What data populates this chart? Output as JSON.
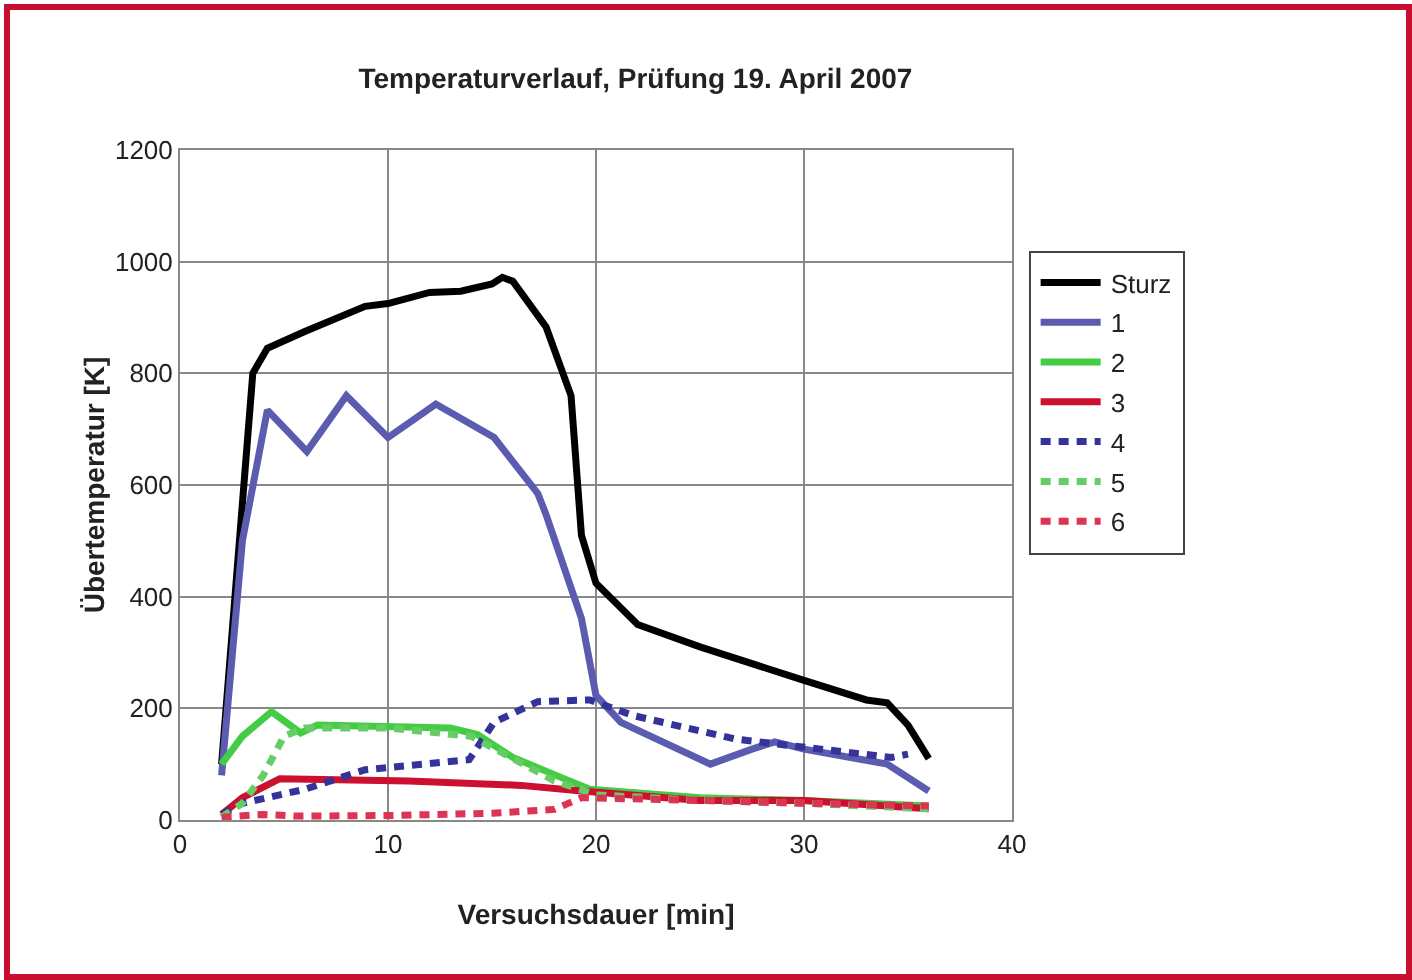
{
  "chart_data": {
    "type": "line",
    "title": "Temperaturverlauf, Prüfung 19. April 2007",
    "xlabel": "Versuchsdauer [min]",
    "ylabel": "Übertemperatur [K]",
    "xlim": [
      0,
      40
    ],
    "xticks": [
      0,
      10,
      20,
      30,
      40
    ],
    "ylim": [
      0,
      1200
    ],
    "yticks": [
      0,
      200,
      400,
      600,
      800,
      1000,
      1200
    ],
    "grid": true,
    "legend": "right",
    "marker": "none",
    "series": [
      {
        "name": "Sturz",
        "color": "#000000",
        "line_style": "solid",
        "x": [
          2,
          3.5,
          4.2,
          6,
          8.9,
          10,
          12,
          13.5,
          15,
          15.5,
          16,
          17.6,
          18.8,
          19.3,
          20,
          22,
          25,
          30,
          33,
          34,
          35,
          36
        ],
        "values": [
          100,
          800,
          845,
          875,
          920,
          925,
          945,
          947,
          960,
          972,
          965,
          883,
          760,
          510,
          424,
          350,
          310,
          250,
          215,
          210,
          170,
          110
        ]
      },
      {
        "name": "1",
        "color": "#5b5bb0",
        "line_style": "solid",
        "x": [
          2,
          3,
          4.2,
          6.1,
          8,
          10,
          12.3,
          15.1,
          17.2,
          17.6,
          19.3,
          20,
          21.2,
          25.5,
          27.5,
          28.6,
          30,
          34,
          36
        ],
        "values": [
          80,
          500,
          734,
          660,
          760,
          685,
          745,
          685,
          585,
          547,
          361,
          223,
          175,
          100,
          127,
          140,
          127,
          100,
          52
        ]
      },
      {
        "name": "2",
        "color": "#44cc44",
        "line_style": "solid",
        "x": [
          2,
          3,
          4.4,
          5.8,
          6.6,
          13,
          14.3,
          16,
          18.4,
          19.7,
          25,
          30,
          36
        ],
        "values": [
          100,
          150,
          194,
          156,
          170,
          165,
          153,
          112,
          75,
          55,
          40,
          35,
          25
        ]
      },
      {
        "name": "3",
        "color": "#cc1030",
        "line_style": "solid",
        "x": [
          2,
          3,
          4.8,
          11,
          16.4,
          19.3,
          25,
          30,
          36
        ],
        "values": [
          10,
          40,
          74,
          70,
          62,
          52,
          35,
          35,
          20
        ]
      },
      {
        "name": "4",
        "color": "#333399",
        "line_style": "dashed",
        "x": [
          2,
          3,
          6,
          8.9,
          13.9,
          15.1,
          17.2,
          19.7,
          21.8,
          26.7,
          34.2,
          35
        ],
        "values": [
          10,
          30,
          55,
          90,
          108,
          175,
          212,
          215,
          187,
          145,
          112,
          118
        ]
      },
      {
        "name": "5",
        "color": "#66cc66",
        "line_style": "dashed",
        "x": [
          2,
          3,
          4,
          5,
          6,
          10,
          14,
          18,
          20,
          25,
          30,
          36
        ],
        "values": [
          5,
          30,
          80,
          150,
          165,
          165,
          150,
          70,
          45,
          35,
          30,
          20
        ]
      },
      {
        "name": "6",
        "color": "#dd3355",
        "line_style": "dashed",
        "x": [
          2,
          4,
          5.5,
          10,
          15,
          18,
          19.3,
          25,
          30,
          36
        ],
        "values": [
          5,
          10,
          7,
          8,
          12,
          19,
          40,
          35,
          30,
          25
        ]
      }
    ]
  }
}
